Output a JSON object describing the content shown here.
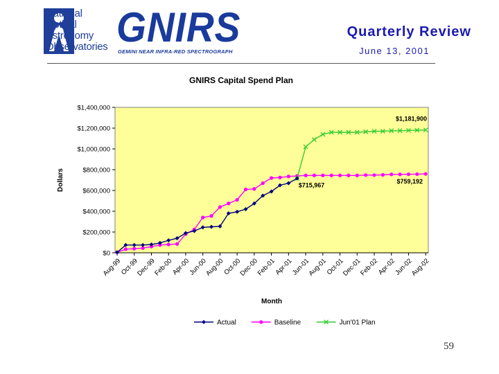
{
  "header": {
    "org_line1": "National",
    "org_line2": "Optical",
    "org_line3": "Astronomy",
    "org_line4": "Observatories",
    "brand": "GNIRS",
    "brand_sub": "GEMINI NEAR INFRA-RED SPECTROGRAPH",
    "review_title": "Quarterly Review",
    "review_date": "June 13, 2001"
  },
  "colors": {
    "plot_bg": "#ffff99",
    "actual": "#000080",
    "baseline": "#ff00ff",
    "plan": "#33cc33",
    "brand_blue": "#1a3a9c"
  },
  "page_number": "59",
  "chart_data": {
    "type": "line",
    "title": "GNIRS Capital Spend Plan",
    "xlabel": "Month",
    "ylabel": "Dollars",
    "ylim": [
      0,
      1400000
    ],
    "y_ticks": [
      0,
      200000,
      400000,
      600000,
      800000,
      1000000,
      1200000,
      1400000
    ],
    "y_tick_labels": [
      "$0",
      "$200,000",
      "$400,000",
      "$600,000",
      "$800,000",
      "$1,000,000",
      "$1,200,000",
      "$1,400,000"
    ],
    "categories": [
      "Aug-99",
      "Sep-99",
      "Oct-99",
      "Nov-99",
      "Dec-99",
      "Jan-00",
      "Feb-00",
      "Mar-00",
      "Apr-00",
      "May-00",
      "Jun-00",
      "Jul-00",
      "Aug-00",
      "Sep-00",
      "Oct-00",
      "Nov-00",
      "Dec-00",
      "Jan-01",
      "Feb-01",
      "Mar-01",
      "Apr-01",
      "May-01",
      "Jun-01",
      "Jul-01",
      "Aug-01",
      "Sep-01",
      "Oct-01",
      "Nov-01",
      "Dec-01",
      "Jan-02",
      "Feb-02",
      "Mar-02",
      "Apr-02",
      "May-02",
      "Jun-02",
      "Jul-02",
      "Aug-02"
    ],
    "x_tick_labels": [
      "Aug-99",
      "Oct-99",
      "Dec-99",
      "Feb-00",
      "Apr-00",
      "Jun-00",
      "Aug-00",
      "Oct-00",
      "Dec-00",
      "Feb-01",
      "Apr-01",
      "Jun-01",
      "Aug-01",
      "Oct-01",
      "Dec-01",
      "Feb-02",
      "Apr-02",
      "Jun-02",
      "Aug-02"
    ],
    "grid": false,
    "legend_position": "bottom",
    "series": [
      {
        "name": "Actual",
        "color": "#000080",
        "marker": "diamond",
        "values": [
          5000,
          75000,
          75000,
          75000,
          80000,
          95000,
          120000,
          140000,
          190000,
          210000,
          245000,
          250000,
          255000,
          380000,
          395000,
          420000,
          475000,
          550000,
          590000,
          650000,
          670000,
          715967,
          null,
          null,
          null,
          null,
          null,
          null,
          null,
          null,
          null,
          null,
          null,
          null,
          null,
          null,
          null
        ]
      },
      {
        "name": "Baseline",
        "color": "#ff00ff",
        "marker": "circle",
        "values": [
          5000,
          35000,
          40000,
          45000,
          60000,
          75000,
          80000,
          85000,
          180000,
          225000,
          340000,
          355000,
          440000,
          475000,
          510000,
          610000,
          615000,
          670000,
          720000,
          725000,
          735000,
          740000,
          745000,
          745000,
          745000,
          745000,
          745000,
          745000,
          745000,
          748000,
          748000,
          750000,
          755000,
          755000,
          756000,
          757000,
          759192
        ]
      },
      {
        "name": "Jun'01 Plan",
        "color": "#33cc33",
        "marker": "x",
        "values": [
          null,
          null,
          null,
          null,
          null,
          null,
          null,
          null,
          null,
          null,
          null,
          null,
          null,
          null,
          null,
          null,
          null,
          null,
          null,
          null,
          null,
          715967,
          1020000,
          1090000,
          1140000,
          1160000,
          1160000,
          1160000,
          1160000,
          1165000,
          1170000,
          1170000,
          1175000,
          1175000,
          1178000,
          1180000,
          1181900
        ]
      }
    ],
    "annotations": [
      "$1,181,900",
      "$759,192",
      "$715,967"
    ]
  }
}
